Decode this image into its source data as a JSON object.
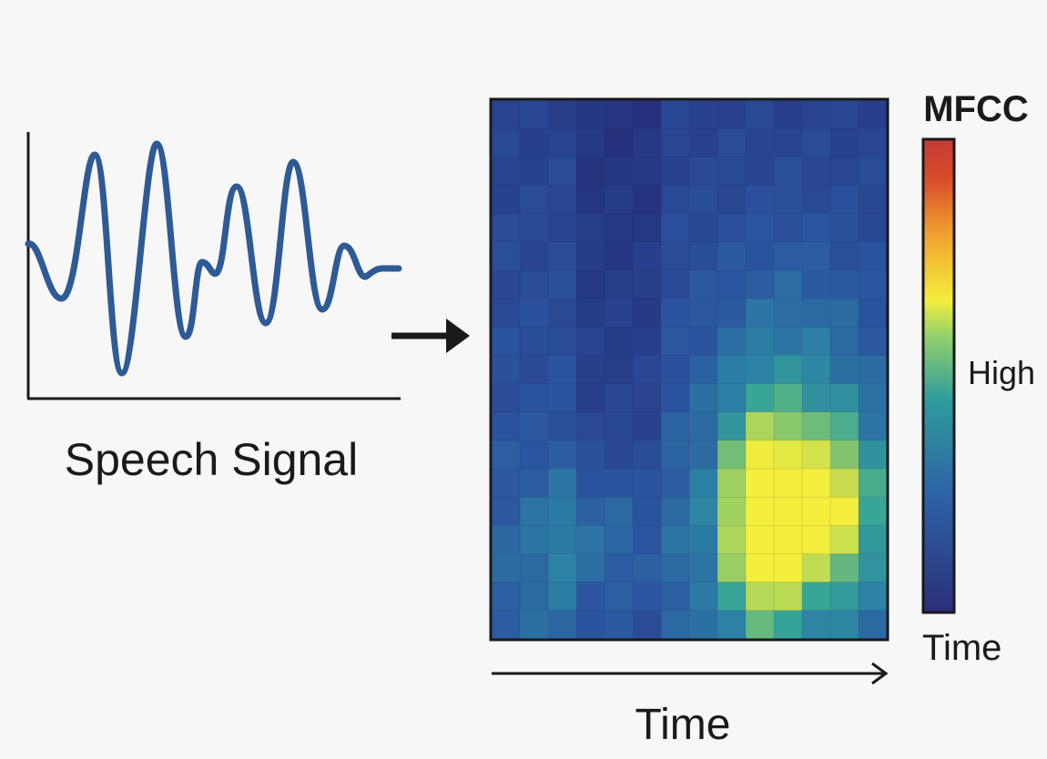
{
  "signal": {
    "label": "Speech Signal",
    "color": "#2e5a96"
  },
  "heatmap": {
    "rows": 19,
    "cols": 14,
    "peak_value": 1.0
  },
  "colorbar": {
    "title": "MFCC",
    "high_label": "High",
    "bottom_label": "Time",
    "stops": [
      "#2b2f78",
      "#2c63a6",
      "#2f9c9c",
      "#8fcf6e",
      "#f4ee3c",
      "#f0a030",
      "#d74a2a",
      "#c43c34"
    ]
  },
  "time_axis": {
    "label": "Time"
  },
  "colors": {
    "ink": "#1a1a1a",
    "heatmap_low": "#25307c",
    "heatmap_high": "#f4ee3c"
  }
}
